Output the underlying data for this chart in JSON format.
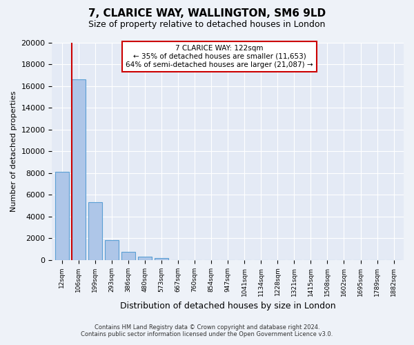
{
  "title": "7, CLARICE WAY, WALLINGTON, SM6 9LD",
  "subtitle": "Size of property relative to detached houses in London",
  "xlabel": "Distribution of detached houses by size in London",
  "ylabel": "Number of detached properties",
  "bar_labels": [
    "12sqm",
    "106sqm",
    "199sqm",
    "293sqm",
    "386sqm",
    "480sqm",
    "573sqm",
    "667sqm",
    "760sqm",
    "854sqm",
    "947sqm",
    "1041sqm",
    "1134sqm",
    "1228sqm",
    "1321sqm",
    "1415sqm",
    "1508sqm",
    "1602sqm",
    "1695sqm",
    "1789sqm",
    "1882sqm"
  ],
  "bar_heights": [
    8100,
    16600,
    5300,
    1800,
    750,
    300,
    150,
    0,
    0,
    0,
    0,
    0,
    0,
    0,
    0,
    0,
    0,
    0,
    0,
    0,
    0
  ],
  "bar_color": "#aec6e8",
  "bar_edgecolor": "#5a9fd4",
  "vline_color": "#cc0000",
  "annotation_title": "7 CLARICE WAY: 122sqm",
  "annotation_line1": "← 35% of detached houses are smaller (11,653)",
  "annotation_line2": "64% of semi-detached houses are larger (21,087) →",
  "annotation_box_edgecolor": "#cc0000",
  "ylim": [
    0,
    20000
  ],
  "yticks": [
    0,
    2000,
    4000,
    6000,
    8000,
    10000,
    12000,
    14000,
    16000,
    18000,
    20000
  ],
  "footnote1": "Contains HM Land Registry data © Crown copyright and database right 2024.",
  "footnote2": "Contains public sector information licensed under the Open Government Licence v3.0.",
  "bg_color": "#eef2f8",
  "plot_bg_color": "#e4eaf5"
}
